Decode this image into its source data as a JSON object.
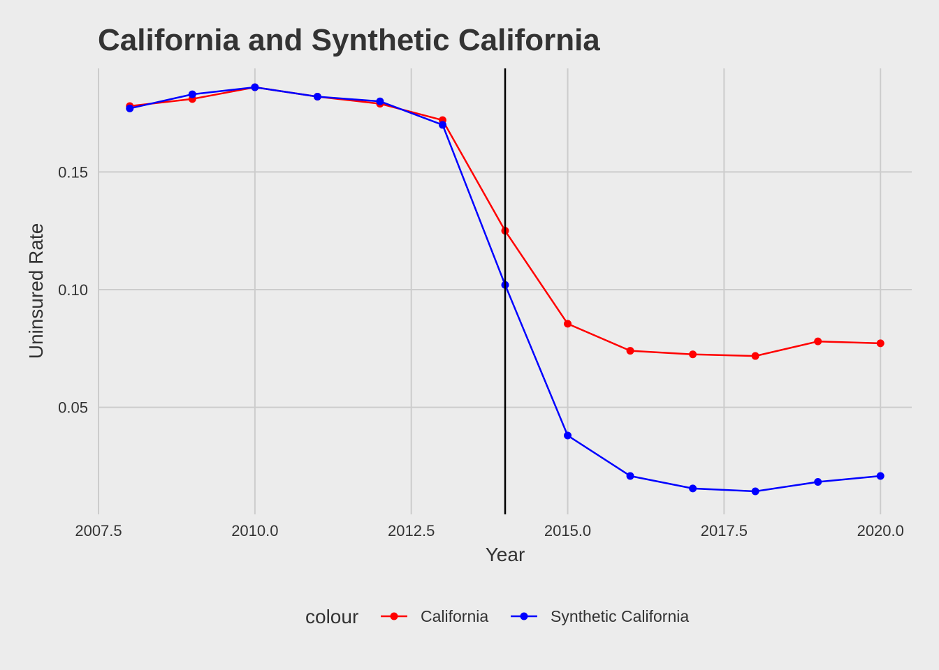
{
  "chart_data": {
    "type": "line",
    "title": "California and Synthetic California",
    "xlabel": "Year",
    "ylabel": "Uninsured Rate",
    "xlim": [
      2007.5,
      2020.5
    ],
    "ylim": [
      0.0045,
      0.194
    ],
    "x_ticks": [
      2007.5,
      2010.0,
      2012.5,
      2015.0,
      2017.5,
      2020.0
    ],
    "x_tick_labels": [
      "2007.5",
      "2010.0",
      "2012.5",
      "2015.0",
      "2017.5",
      "2020.0"
    ],
    "y_ticks": [
      0.05,
      0.1,
      0.15
    ],
    "y_tick_labels": [
      "0.05",
      "0.10",
      "0.15"
    ],
    "grid": true,
    "reference_line": {
      "x": 2014
    },
    "legend": {
      "title": "colour",
      "position": "bottom"
    },
    "x": [
      2008,
      2009,
      2010,
      2011,
      2012,
      2013,
      2014,
      2015,
      2016,
      2017,
      2018,
      2019,
      2020
    ],
    "series": [
      {
        "name": "California",
        "color": "#ff0000",
        "values": [
          0.178,
          0.181,
          0.186,
          0.182,
          0.179,
          0.172,
          0.125,
          0.0855,
          0.074,
          0.0725,
          0.0718,
          0.078,
          0.0772
        ]
      },
      {
        "name": "Synthetic California",
        "color": "#0000ff",
        "values": [
          0.177,
          0.183,
          0.186,
          0.182,
          0.18,
          0.17,
          0.102,
          0.038,
          0.0208,
          0.0155,
          0.0143,
          0.0183,
          0.0208
        ]
      }
    ],
    "colors": {
      "background": "#ececec",
      "grid": "#cccccc",
      "reference_line": "#000000",
      "text": "#333333"
    }
  }
}
